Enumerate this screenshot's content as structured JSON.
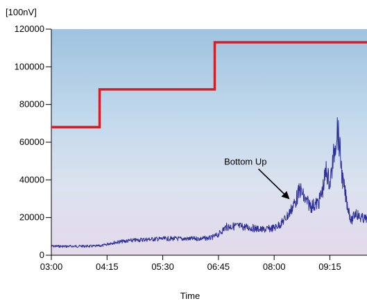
{
  "chart_data": {
    "type": "line",
    "title": "",
    "y_unit": "[100nV]",
    "xlabel": "Time",
    "ylabel": "",
    "x_ticks": [
      "03:00",
      "04:15",
      "05:30",
      "06:45",
      "08:00",
      "09:15"
    ],
    "y_ticks": [
      "0",
      "20000",
      "40000",
      "60000",
      "80000",
      "100000",
      "120000"
    ],
    "x_range": [
      "03:00",
      "10:05"
    ],
    "ylim": [
      0,
      120000
    ],
    "grid": false,
    "legend": "none",
    "background_gradient": [
      "#9fc3df",
      "#c3d9ec",
      "#dce2ef",
      "#e4d9ea"
    ],
    "series": [
      {
        "color": "#d12027",
        "style": "step",
        "points": [
          [
            "03:00",
            68000
          ],
          [
            "04:05",
            68000
          ],
          [
            "04:05",
            88000
          ],
          [
            "06:40",
            88000
          ],
          [
            "06:40",
            113000
          ],
          [
            "10:05",
            113000
          ]
        ]
      },
      {
        "color": "#2b2f97",
        "style": "noisy",
        "points": [
          [
            "03:00",
            4800
          ],
          [
            "03:20",
            4700
          ],
          [
            "03:40",
            4800
          ],
          [
            "04:00",
            4800
          ],
          [
            "04:10",
            5200
          ],
          [
            "04:20",
            6500
          ],
          [
            "04:40",
            7500
          ],
          [
            "05:00",
            8200
          ],
          [
            "05:20",
            8600
          ],
          [
            "05:40",
            8800
          ],
          [
            "06:00",
            8700
          ],
          [
            "06:20",
            8800
          ],
          [
            "06:35",
            9200
          ],
          [
            "06:45",
            11000
          ],
          [
            "06:55",
            15000
          ],
          [
            "07:10",
            15500
          ],
          [
            "07:30",
            14500
          ],
          [
            "07:45",
            13500
          ],
          [
            "08:00",
            14500
          ],
          [
            "08:10",
            17000
          ],
          [
            "08:20",
            22000
          ],
          [
            "08:28",
            28000
          ],
          [
            "08:35",
            35000
          ],
          [
            "08:42",
            29000
          ],
          [
            "08:50",
            26000
          ],
          [
            "09:00",
            28000
          ],
          [
            "09:05",
            34000
          ],
          [
            "09:10",
            45000
          ],
          [
            "09:15",
            38000
          ],
          [
            "09:20",
            52000
          ],
          [
            "09:25",
            68000
          ],
          [
            "09:28",
            58000
          ],
          [
            "09:32",
            40000
          ],
          [
            "09:38",
            28000
          ],
          [
            "09:44",
            18000
          ],
          [
            "09:50",
            23000
          ],
          [
            "09:55",
            20000
          ],
          [
            "10:05",
            19000
          ]
        ]
      }
    ],
    "annotations": [
      {
        "text": "Bottom Up",
        "at": [
          "07:50",
          48000
        ],
        "arrow_to": [
          "08:20",
          30000
        ]
      }
    ]
  }
}
